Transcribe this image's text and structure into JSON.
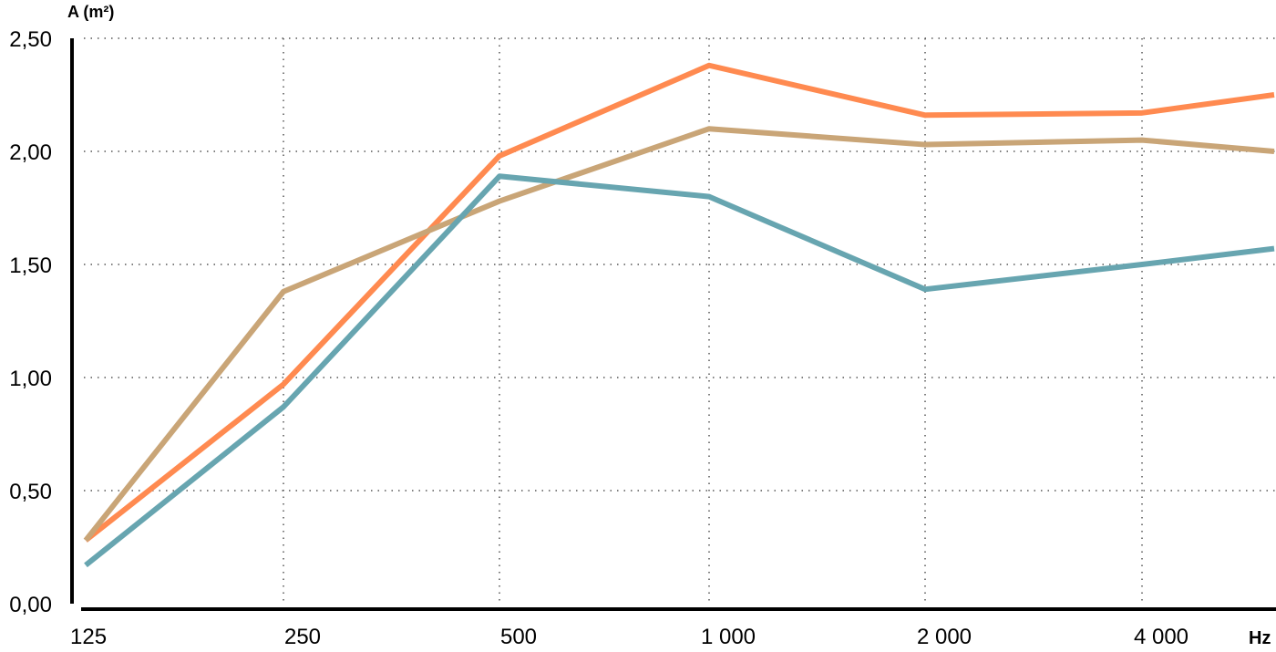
{
  "chart_data": {
    "type": "line",
    "title": "",
    "ylabel": "A (m²)",
    "xlabel": "Hz",
    "categories": [
      "125",
      "250",
      "500",
      "1 000",
      "2 000",
      "4 000"
    ],
    "y_ticks": [
      "0,00",
      "0,50",
      "1,00",
      "1,50",
      "2,00",
      "2,50"
    ],
    "y_tick_values": [
      0,
      0.5,
      1.0,
      1.5,
      2.0,
      2.5
    ],
    "ylim": [
      0,
      2.5
    ],
    "grid": true,
    "legend": "none",
    "series": [
      {
        "color": "#FF8A50",
        "values": [
          0.28,
          0.97,
          1.98,
          2.38,
          2.16,
          2.17
        ],
        "end_value": 2.25
      },
      {
        "color": "#C9A577",
        "values": [
          0.28,
          1.38,
          1.78,
          2.1,
          2.03,
          2.05
        ],
        "end_value": 2.0
      },
      {
        "color": "#67A5B0",
        "values": [
          0.17,
          0.87,
          1.89,
          1.8,
          1.39,
          1.5
        ],
        "end_value": 1.57
      }
    ]
  }
}
